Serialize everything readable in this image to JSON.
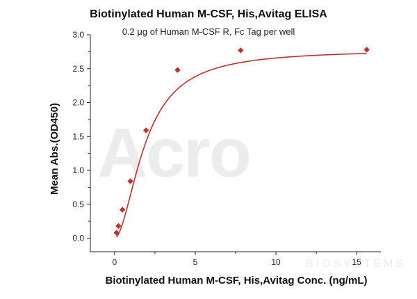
{
  "chart_data": {
    "type": "scatter",
    "title": "Biotinylated Human M-CSF, His,Avitag ELISA",
    "subtitle": "0.2 μg of Human M-CSF R, Fc Tag per well",
    "xlabel": "Biotinylated Human M-CSF, His,Avitag Conc. (ng/mL)",
    "ylabel": "Mean Abs.(OD450)",
    "xlim": [
      -1.5,
      16.5
    ],
    "ylim": [
      -0.2,
      3.0
    ],
    "x_ticks": [
      0,
      5,
      10,
      15
    ],
    "y_ticks": [
      0.0,
      0.5,
      1.0,
      1.5,
      2.0,
      2.5,
      3.0
    ],
    "x_tick_labels": [
      "0",
      "5",
      "10",
      "15"
    ],
    "y_tick_labels": [
      "0.0",
      "0.5",
      "1.0",
      "1.5",
      "2.0",
      "2.5",
      "3.0"
    ],
    "grid": false,
    "series": [
      {
        "x": [
          0.122,
          0.244,
          0.488,
          0.977,
          1.953,
          3.906,
          7.813,
          15.625
        ],
        "y": [
          0.08,
          0.18,
          0.42,
          0.84,
          1.59,
          2.48,
          2.77,
          2.78
        ],
        "color": "#c0302c",
        "marker": "diamond",
        "fit": "sigmoid"
      }
    ],
    "watermark": "ACRO BIOSYSTEMS"
  }
}
